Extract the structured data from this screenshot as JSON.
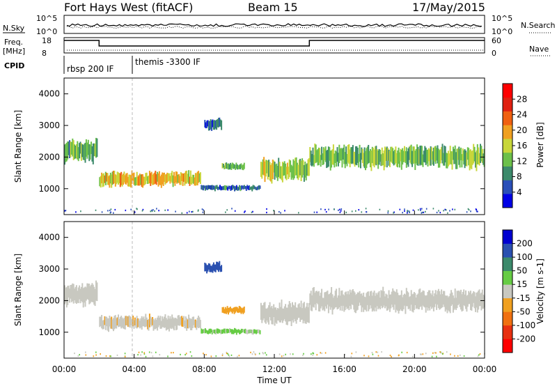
{
  "header": {
    "station": "Fort Hays West (fitACF)",
    "beam": "Beam 15",
    "date": "17/May/2015"
  },
  "top_panels": {
    "nsky_label": "N.Sky",
    "nsky_ticks": [
      "10^5",
      "10^0"
    ],
    "nsearch_label": "N.Search",
    "nsearch_ticks": [
      "10^5",
      "10^0"
    ],
    "freq_label": "Freq.",
    "freq_unit": "[MHz]",
    "freq_ticks": [
      "18",
      "8"
    ],
    "nave_label": "Nave",
    "nave_ticks": [
      "60",
      "0"
    ],
    "cpid_label": "CPID",
    "cpid_segments": [
      {
        "label": "rbsp 200 IF",
        "start": 0,
        "end": 4
      },
      {
        "label": "themis -3300 IF",
        "start": 4,
        "end": 24
      }
    ],
    "freq_steps": [
      {
        "start": 0,
        "end": 2,
        "level": 1
      },
      {
        "start": 2,
        "end": 14,
        "level": 0.5
      },
      {
        "start": 14,
        "end": 24,
        "level": 1
      }
    ]
  },
  "xaxis": {
    "label": "Time UT",
    "ticks": [
      "00:00",
      "04:00",
      "08:00",
      "12:00",
      "16:00",
      "20:00",
      "00:00"
    ],
    "tick_hours": [
      0,
      4,
      8,
      12,
      16,
      20,
      24
    ],
    "range": [
      0,
      24
    ]
  },
  "yaxis": {
    "label": "Slant Range [km]",
    "ticks": [
      "4000",
      "3000",
      "2000",
      "1000"
    ],
    "tick_values": [
      4000,
      3000,
      2000,
      1000
    ],
    "range": [
      180,
      4500
    ]
  },
  "power_colorbar": {
    "label": "Power [dB]",
    "ticks": [
      "28",
      "24",
      "20",
      "16",
      "12",
      "8",
      "4"
    ],
    "colors": [
      "#0000e6",
      "#2a4fb8",
      "#3c8a6b",
      "#6cc04a",
      "#c8d63a",
      "#f0a020",
      "#f06010",
      "#e02010",
      "#ff0000"
    ]
  },
  "velocity_colorbar": {
    "label": "Velocity [m s-1]",
    "ticks": [
      "200",
      "100",
      "50",
      "15",
      "-15",
      "-50",
      "-100",
      "-200"
    ],
    "colors": [
      "#0000d0",
      "#2a50b0",
      "#3c8a6b",
      "#66cc44",
      "#c8c8c0",
      "#f0a020",
      "#f07010",
      "#e83010",
      "#ff0000"
    ]
  },
  "chart_data": [
    {
      "type": "heatmap",
      "title": "Power",
      "xlabel": "Time UT",
      "ylabel": "Slant Range [km]",
      "xlim": [
        0,
        24
      ],
      "ylim": [
        180,
        4500
      ],
      "colorbar_label": "Power [dB]",
      "bands": [
        {
          "t0": 0.0,
          "t1": 1.9,
          "r0": 1900,
          "r1": 2500,
          "value": 10
        },
        {
          "t0": 2.0,
          "t1": 7.8,
          "r0": 1100,
          "r1": 1500,
          "value": 18
        },
        {
          "t0": 8.0,
          "t1": 9.0,
          "r0": 2900,
          "r1": 3200,
          "value": 6
        },
        {
          "t0": 9.0,
          "t1": 10.3,
          "r0": 1600,
          "r1": 1800,
          "value": 12
        },
        {
          "t0": 7.8,
          "t1": 11.2,
          "r0": 950,
          "r1": 1100,
          "value": 6
        },
        {
          "t0": 11.2,
          "t1": 14.0,
          "r0": 1300,
          "r1": 1900,
          "value": 14
        },
        {
          "t0": 14.0,
          "t1": 24.0,
          "r0": 1700,
          "r1": 2300,
          "value": 12
        }
      ]
    },
    {
      "type": "heatmap",
      "title": "Velocity",
      "xlabel": "Time UT",
      "ylabel": "Slant Range [km]",
      "xlim": [
        0,
        24
      ],
      "ylim": [
        180,
        4500
      ],
      "colorbar_label": "Velocity [m s-1]",
      "bands": [
        {
          "t0": 0.0,
          "t1": 1.9,
          "r0": 1900,
          "r1": 2500,
          "value": 0
        },
        {
          "t0": 2.0,
          "t1": 7.8,
          "r0": 1100,
          "r1": 1500,
          "value": -20
        },
        {
          "t0": 8.0,
          "t1": 9.0,
          "r0": 2900,
          "r1": 3200,
          "value": 200
        },
        {
          "t0": 9.0,
          "t1": 10.3,
          "r0": 1600,
          "r1": 1800,
          "value": -60
        },
        {
          "t0": 7.8,
          "t1": 11.2,
          "r0": 950,
          "r1": 1100,
          "value": 40
        },
        {
          "t0": 11.2,
          "t1": 14.0,
          "r0": 1300,
          "r1": 1900,
          "value": 0
        },
        {
          "t0": 14.0,
          "t1": 24.0,
          "r0": 1700,
          "r1": 2300,
          "value": 0
        }
      ]
    }
  ]
}
